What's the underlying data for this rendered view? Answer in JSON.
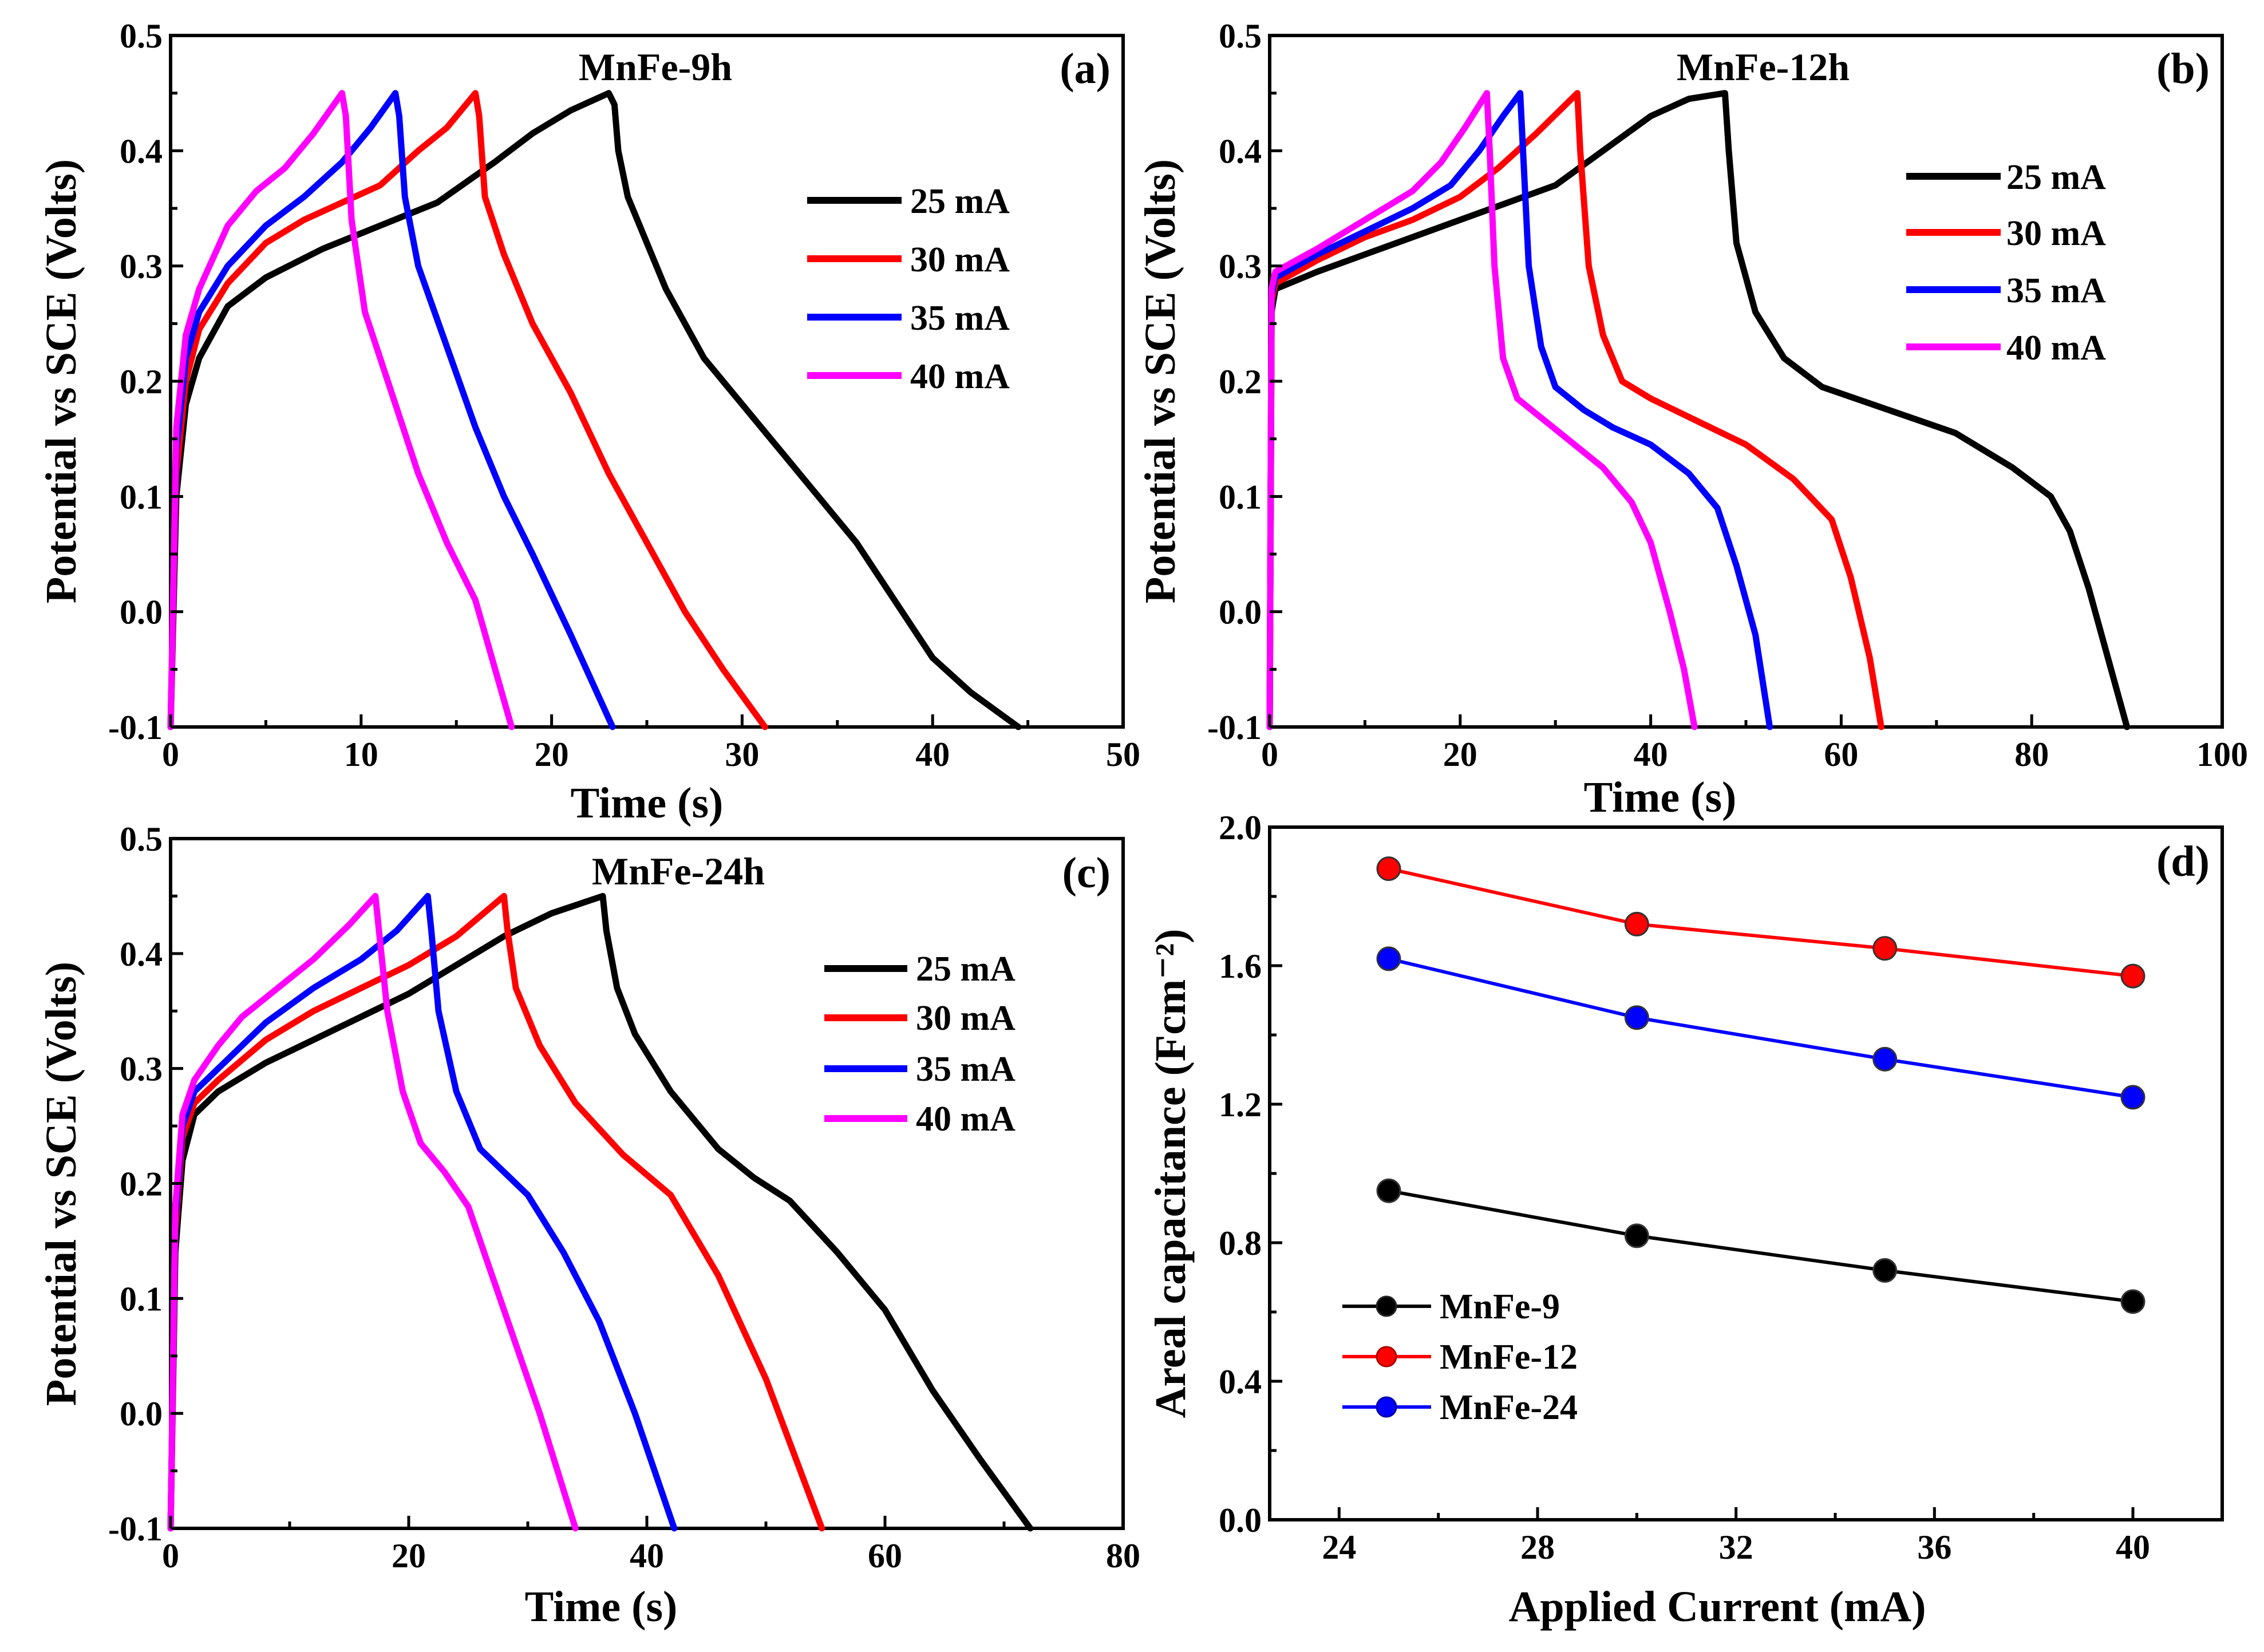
{
  "chart_data": [
    {
      "panel": "a",
      "type": "line",
      "title": "MnFe-9h",
      "label": "(a)",
      "xlabel": "Time (s)",
      "ylabel": "Potential vs SCE (Volts)",
      "xlim": [
        0,
        50
      ],
      "ylim": [
        -0.1,
        0.5
      ],
      "xticks": [
        0,
        10,
        20,
        30,
        40,
        50
      ],
      "yticks": [
        -0.1,
        0.0,
        0.1,
        0.2,
        0.3,
        0.4,
        0.5
      ],
      "xtick_labels": [
        "0",
        "10",
        "20",
        "30",
        "40",
        "50"
      ],
      "ytick_labels": [
        "-0.1",
        "0.0",
        "0.1",
        "0.2",
        "0.3",
        "0.4",
        "0.5"
      ],
      "legend": "upper-middle",
      "series": [
        {
          "name": "25 mA",
          "color": "#000000",
          "x": [
            0,
            0.3,
            0.8,
            1.5,
            3,
            5,
            8,
            11,
            14,
            17,
            19,
            21,
            23,
            23.3,
            23.5,
            24,
            26,
            28,
            30,
            32,
            34,
            36,
            38,
            40,
            42,
            44.5
          ],
          "y": [
            -0.1,
            0.1,
            0.18,
            0.22,
            0.265,
            0.29,
            0.315,
            0.335,
            0.355,
            0.39,
            0.415,
            0.435,
            0.45,
            0.44,
            0.4,
            0.36,
            0.28,
            0.22,
            0.18,
            0.14,
            0.1,
            0.06,
            0.01,
            -0.04,
            -0.07,
            -0.1
          ]
        },
        {
          "name": "30 mA",
          "color": "#ff0000",
          "x": [
            0,
            0.3,
            0.8,
            1.5,
            3,
            5,
            7,
            9,
            11,
            13,
            14.5,
            16,
            16.2,
            16.5,
            17.5,
            19,
            21,
            23,
            25,
            27,
            29,
            31.2
          ],
          "y": [
            -0.1,
            0.12,
            0.2,
            0.245,
            0.285,
            0.32,
            0.34,
            0.355,
            0.37,
            0.4,
            0.42,
            0.45,
            0.43,
            0.36,
            0.31,
            0.25,
            0.19,
            0.12,
            0.06,
            0.0,
            -0.05,
            -0.1
          ]
        },
        {
          "name": "35 mA",
          "color": "#0000ff",
          "x": [
            0,
            0.3,
            0.8,
            1.5,
            3,
            5,
            7,
            9,
            10.5,
            11.8,
            12,
            12.3,
            13,
            14.5,
            16,
            17.5,
            19,
            21,
            23.2
          ],
          "y": [
            -0.1,
            0.14,
            0.22,
            0.26,
            0.3,
            0.335,
            0.36,
            0.39,
            0.42,
            0.45,
            0.43,
            0.36,
            0.3,
            0.23,
            0.16,
            0.1,
            0.05,
            -0.02,
            -0.1
          ]
        },
        {
          "name": "40 mA",
          "color": "#ff00ff",
          "x": [
            0,
            0.3,
            0.8,
            1.5,
            3,
            4.5,
            6,
            7.5,
            9,
            9.2,
            9.5,
            10.2,
            11,
            12,
            13,
            14.5,
            16,
            17.9
          ],
          "y": [
            -0.1,
            0.16,
            0.24,
            0.28,
            0.335,
            0.365,
            0.385,
            0.415,
            0.45,
            0.43,
            0.34,
            0.26,
            0.22,
            0.17,
            0.12,
            0.06,
            0.01,
            -0.1
          ]
        }
      ]
    },
    {
      "panel": "b",
      "type": "line",
      "title": "MnFe-12h",
      "label": "(b)",
      "xlabel": "Time (s)",
      "ylabel": "Potential vs SCE (Volts)",
      "xlim": [
        0,
        100
      ],
      "ylim": [
        -0.1,
        0.5
      ],
      "xticks": [
        0,
        20,
        40,
        60,
        80,
        100
      ],
      "yticks": [
        -0.1,
        0.0,
        0.1,
        0.2,
        0.3,
        0.4,
        0.5
      ],
      "xtick_labels": [
        "0",
        "20",
        "40",
        "60",
        "80",
        "100"
      ],
      "ytick_labels": [
        "-0.1",
        "0.0",
        "0.1",
        "0.2",
        "0.3",
        "0.4",
        "0.5"
      ],
      "legend": "right",
      "series": [
        {
          "name": "25 mA",
          "color": "#000000",
          "x": [
            0,
            0.2,
            0.6,
            5,
            10,
            15,
            20,
            25,
            30,
            35,
            40,
            44,
            47.8,
            48.2,
            49,
            51,
            54,
            58,
            65,
            72,
            78,
            82,
            84,
            86,
            88,
            90
          ],
          "y": [
            -0.1,
            0.26,
            0.28,
            0.295,
            0.31,
            0.325,
            0.34,
            0.355,
            0.37,
            0.4,
            0.43,
            0.445,
            0.45,
            0.4,
            0.32,
            0.26,
            0.22,
            0.195,
            0.175,
            0.155,
            0.125,
            0.1,
            0.07,
            0.02,
            -0.04,
            -0.1
          ]
        },
        {
          "name": "30 mA",
          "color": "#ff0000",
          "x": [
            0,
            0.2,
            0.6,
            5,
            10,
            15,
            20,
            24,
            28,
            32.3,
            32.6,
            33.5,
            35,
            37,
            40,
            45,
            50,
            55,
            59,
            61,
            63,
            64.2
          ],
          "y": [
            -0.1,
            0.27,
            0.285,
            0.305,
            0.325,
            0.34,
            0.36,
            0.385,
            0.415,
            0.45,
            0.4,
            0.3,
            0.24,
            0.2,
            0.185,
            0.165,
            0.145,
            0.115,
            0.08,
            0.03,
            -0.04,
            -0.1
          ]
        },
        {
          "name": "35 mA",
          "color": "#0000ff",
          "x": [
            0,
            0.2,
            0.6,
            5,
            10,
            15,
            19,
            22,
            24.5,
            26.3,
            26.6,
            27.2,
            28.5,
            30,
            33,
            36,
            40,
            44,
            47,
            49,
            51,
            52.5
          ],
          "y": [
            -0.1,
            0.275,
            0.29,
            0.31,
            0.33,
            0.35,
            0.37,
            0.4,
            0.43,
            0.45,
            0.4,
            0.3,
            0.23,
            0.195,
            0.175,
            0.16,
            0.145,
            0.12,
            0.09,
            0.04,
            -0.02,
            -0.1
          ]
        },
        {
          "name": "40 mA",
          "color": "#ff00ff",
          "x": [
            0,
            0.2,
            0.6,
            5,
            10,
            15,
            18,
            20.5,
            22.8,
            23.1,
            23.6,
            24.5,
            26,
            29,
            32,
            35,
            38,
            40,
            42,
            43.5,
            44.6
          ],
          "y": [
            -0.1,
            0.28,
            0.295,
            0.315,
            0.34,
            0.365,
            0.39,
            0.42,
            0.45,
            0.4,
            0.3,
            0.22,
            0.185,
            0.165,
            0.145,
            0.125,
            0.095,
            0.06,
            0.0,
            -0.05,
            -0.1
          ]
        }
      ]
    },
    {
      "panel": "c",
      "type": "line",
      "title": "MnFe-24h",
      "label": "(c)",
      "xlabel": "Time (s)",
      "ylabel": "Potential vs SCE (Volts)",
      "xlim": [
        0,
        80
      ],
      "ylim": [
        -0.1,
        0.5
      ],
      "xticks": [
        0,
        20,
        40,
        60,
        80
      ],
      "yticks": [
        -0.1,
        0.0,
        0.1,
        0.2,
        0.3,
        0.4,
        0.5
      ],
      "xtick_labels": [
        "0",
        "20",
        "40",
        "60",
        "80"
      ],
      "ytick_labels": [
        "-0.1",
        "0.0",
        "0.1",
        "0.2",
        "0.3",
        "0.4",
        "0.5"
      ],
      "legend": "upper-middle",
      "series": [
        {
          "name": "25 mA",
          "color": "#000000",
          "x": [
            0,
            0.4,
            1,
            2,
            4,
            8,
            12,
            16,
            20,
            24,
            28,
            32,
            36.3,
            36.6,
            37.5,
            39,
            42,
            46,
            49,
            52,
            56,
            60,
            64,
            68,
            72.2
          ],
          "y": [
            -0.1,
            0.14,
            0.22,
            0.26,
            0.28,
            0.305,
            0.325,
            0.345,
            0.365,
            0.39,
            0.415,
            0.435,
            0.45,
            0.42,
            0.37,
            0.33,
            0.28,
            0.23,
            0.205,
            0.185,
            0.14,
            0.09,
            0.02,
            -0.04,
            -0.1
          ]
        },
        {
          "name": "30 mA",
          "color": "#ff0000",
          "x": [
            0,
            0.4,
            1,
            2,
            4,
            8,
            12,
            16,
            20,
            24,
            28,
            28.3,
            29,
            31,
            34,
            38,
            42,
            46,
            50,
            54.7
          ],
          "y": [
            -0.1,
            0.16,
            0.24,
            0.27,
            0.29,
            0.325,
            0.35,
            0.37,
            0.39,
            0.415,
            0.45,
            0.42,
            0.37,
            0.32,
            0.27,
            0.225,
            0.19,
            0.12,
            0.03,
            -0.1
          ]
        },
        {
          "name": "35 mA",
          "color": "#0000ff",
          "x": [
            0,
            0.4,
            1,
            2,
            4,
            8,
            12,
            16,
            19,
            21.6,
            21.9,
            22.5,
            24,
            26,
            28,
            30,
            33,
            36,
            39,
            42.3
          ],
          "y": [
            -0.1,
            0.17,
            0.25,
            0.28,
            0.3,
            0.34,
            0.37,
            0.395,
            0.42,
            0.45,
            0.42,
            0.35,
            0.28,
            0.23,
            0.21,
            0.19,
            0.14,
            0.08,
            0.0,
            -0.1
          ]
        },
        {
          "name": "40 mA",
          "color": "#ff00ff",
          "x": [
            0,
            0.4,
            1,
            2,
            4,
            6,
            9,
            12,
            15,
            17.2,
            17.5,
            18.2,
            19.5,
            21,
            23,
            25,
            27,
            29,
            31,
            34
          ],
          "y": [
            -0.1,
            0.18,
            0.26,
            0.29,
            0.32,
            0.345,
            0.37,
            0.395,
            0.425,
            0.45,
            0.42,
            0.35,
            0.28,
            0.235,
            0.21,
            0.18,
            0.12,
            0.06,
            0.0,
            -0.1
          ]
        }
      ]
    },
    {
      "panel": "d",
      "type": "line",
      "title": "",
      "label": "(d)",
      "xlabel": "Applied Current (mA)",
      "ylabel": "Areal capacitance (Fcm⁻²)",
      "xlim": [
        22.6,
        41.8
      ],
      "ylim": [
        0.0,
        2.0
      ],
      "xticks": [
        24,
        28,
        32,
        36,
        40
      ],
      "yticks": [
        0.0,
        0.4,
        0.8,
        1.2,
        1.6,
        2.0
      ],
      "xtick_labels": [
        "24",
        "28",
        "32",
        "36",
        "40"
      ],
      "ytick_labels": [
        "0.0",
        "0.4",
        "0.8",
        "1.2",
        "1.6",
        "2.0"
      ],
      "legend": "lower-left",
      "markers": true,
      "series": [
        {
          "name": "MnFe-9",
          "color": "#000000",
          "x": [
            25,
            30,
            35,
            40
          ],
          "y": [
            0.95,
            0.82,
            0.72,
            0.63
          ]
        },
        {
          "name": "MnFe-12",
          "color": "#ff0000",
          "x": [
            25,
            30,
            35,
            40
          ],
          "y": [
            1.88,
            1.72,
            1.65,
            1.57
          ]
        },
        {
          "name": "MnFe-24",
          "color": "#0000ff",
          "x": [
            25,
            30,
            35,
            40
          ],
          "y": [
            1.62,
            1.45,
            1.33,
            1.22
          ]
        }
      ]
    }
  ]
}
